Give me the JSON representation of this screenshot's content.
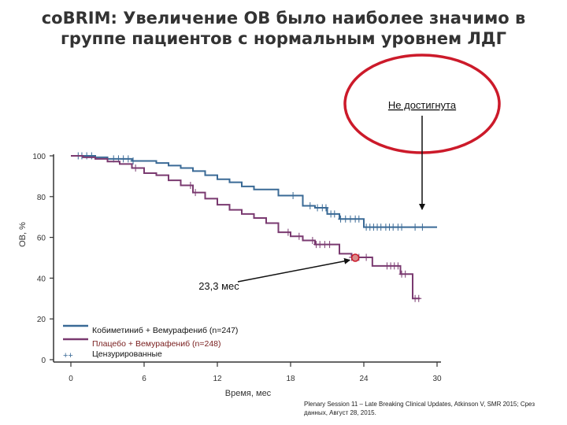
{
  "title": {
    "line1": "coBRIM: Увеличение ОВ было наиболее значимо в",
    "line2": "группе пациентов с нормальным уровнем ЛДГ"
  },
  "callouts": {
    "not_reached": "Не достигнута",
    "median": "23,3 мес"
  },
  "footer": {
    "line1": "Plenary Session 11 – Late Breaking Clinical Updates, Atkinson V, SMR 2015; Срез",
    "line2": "данных, Август 28, 2015."
  },
  "colors": {
    "series_blue": "#3a6a96",
    "series_purple": "#7a3a70",
    "circle": "#cc1a2a",
    "axis": "#333333"
  },
  "chart_data": {
    "type": "line",
    "xlabel": "Время, мес",
    "ylabel": "ОВ, %",
    "xlim": [
      0,
      30
    ],
    "ylim": [
      0,
      100
    ],
    "x_ticks": [
      0,
      6,
      12,
      18,
      24,
      30
    ],
    "y_ticks": [
      0,
      20,
      40,
      60,
      80,
      100
    ],
    "legend": {
      "placement": "bottom-left",
      "censor_symbol": "++",
      "censor_label": "Цензурированные"
    },
    "series": [
      {
        "name": "Кобиметиниб + Вемурафениб (n=247)",
        "color": "#3a6a96",
        "steps": [
          [
            0,
            100
          ],
          [
            2,
            99.3
          ],
          [
            3,
            98.5
          ],
          [
            5,
            97.5
          ],
          [
            7,
            96.5
          ],
          [
            8,
            95.2
          ],
          [
            9,
            94
          ],
          [
            10,
            92.5
          ],
          [
            11,
            90.5
          ],
          [
            12,
            88.5
          ],
          [
            13,
            87
          ],
          [
            14,
            85
          ],
          [
            15,
            83.5
          ],
          [
            17,
            80.5
          ],
          [
            19,
            75.5
          ],
          [
            20,
            74.5
          ],
          [
            21,
            71.5
          ],
          [
            22,
            69
          ],
          [
            24,
            65
          ],
          [
            27,
            65
          ],
          [
            30,
            65
          ]
        ],
        "censors": [
          0.6,
          0.9,
          1.3,
          1.7,
          3.5,
          3.9,
          4.3,
          4.7,
          5.1,
          18.2,
          19.6,
          20.2,
          20.6,
          20.9,
          21.3,
          21.6,
          22.1,
          22.5,
          22.9,
          23.3,
          23.6,
          24.2,
          24.5,
          24.8,
          25.1,
          25.4,
          25.8,
          26.1,
          26.4,
          26.8,
          27.1,
          28.2,
          28.8
        ]
      },
      {
        "name": "Плацебо + Вемурафениб (n=248)",
        "color": "#7a3a70",
        "steps": [
          [
            0,
            100
          ],
          [
            1,
            99.3
          ],
          [
            2,
            98.5
          ],
          [
            3,
            97.2
          ],
          [
            4,
            96
          ],
          [
            5,
            94
          ],
          [
            6,
            91.5
          ],
          [
            7,
            90.5
          ],
          [
            8,
            88
          ],
          [
            9,
            85.5
          ],
          [
            10,
            82
          ],
          [
            11,
            79
          ],
          [
            12,
            76
          ],
          [
            13,
            73.5
          ],
          [
            14,
            71.5
          ],
          [
            15,
            69.5
          ],
          [
            16,
            67
          ],
          [
            17,
            62.5
          ],
          [
            18,
            60.5
          ],
          [
            19,
            58.5
          ],
          [
            20,
            56.5
          ],
          [
            22,
            52
          ],
          [
            23,
            50.2
          ],
          [
            24.7,
            46
          ],
          [
            27,
            42
          ],
          [
            28,
            30
          ],
          [
            28.6,
            30
          ]
        ],
        "censors": [
          5.3,
          9.8,
          10.2,
          17.8,
          18.7,
          19.8,
          20.1,
          20.4,
          20.8,
          21.2,
          23.0,
          23.3,
          23.6,
          24.2,
          25.9,
          26.2,
          26.5,
          26.8,
          27.1,
          27.4,
          28.2,
          28.5
        ]
      }
    ],
    "median_marker": {
      "x": 23.3,
      "y": 50
    }
  }
}
